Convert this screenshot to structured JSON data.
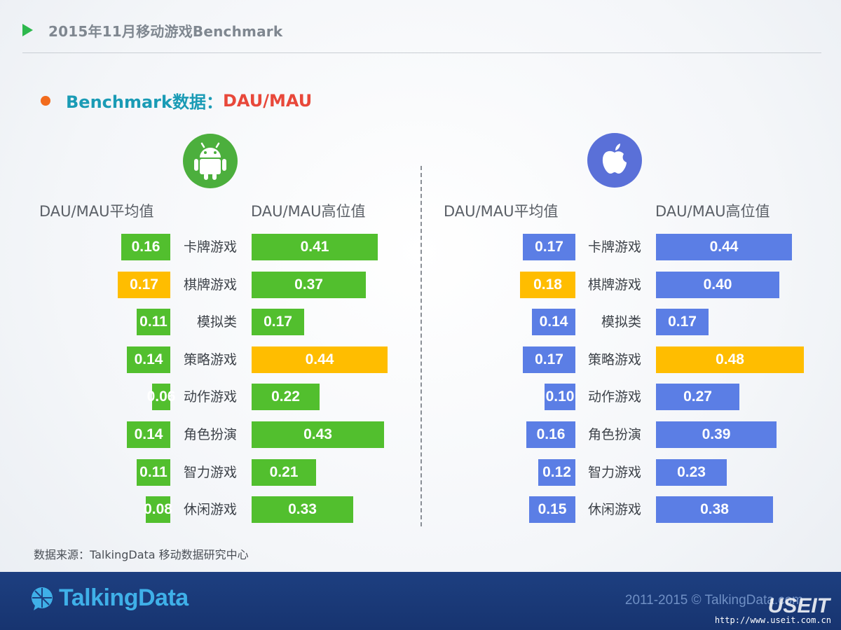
{
  "header": {
    "title": "2015年11月移动游戏Benchmark"
  },
  "section": {
    "label": "Benchmark数据：",
    "metric": "DAU/MAU"
  },
  "colors": {
    "android_bar": "#52bf2e",
    "ios_bar": "#5b7ee5",
    "highlight": "#ffbd00"
  },
  "icons": {
    "android": "android-icon",
    "ios": "apple-icon"
  },
  "columns": {
    "avg": "DAU/MAU平均值",
    "high": "DAU/MAU高位值"
  },
  "chart_data": [
    {
      "type": "bar",
      "platform_icon": "android-icon",
      "categories": [
        "卡牌游戏",
        "棋牌游戏",
        "模拟类",
        "策略游戏",
        "动作游戏",
        "角色扮演",
        "智力游戏",
        "休闲游戏"
      ],
      "series": [
        {
          "name": "DAU/MAU平均值",
          "values": [
            0.16,
            0.17,
            0.11,
            0.14,
            0.06,
            0.14,
            0.11,
            0.08
          ],
          "highlight_index": 1
        },
        {
          "name": "DAU/MAU高位值",
          "values": [
            0.41,
            0.37,
            0.17,
            0.44,
            0.22,
            0.43,
            0.21,
            0.33
          ],
          "highlight_index": 3
        }
      ]
    },
    {
      "type": "bar",
      "platform_icon": "apple-icon",
      "categories": [
        "卡牌游戏",
        "棋牌游戏",
        "模拟类",
        "策略游戏",
        "动作游戏",
        "角色扮演",
        "智力游戏",
        "休闲游戏"
      ],
      "series": [
        {
          "name": "DAU/MAU平均值",
          "values": [
            0.17,
            0.18,
            0.14,
            0.17,
            0.1,
            0.16,
            0.12,
            0.15
          ],
          "highlight_index": 1
        },
        {
          "name": "DAU/MAU高位值",
          "values": [
            0.44,
            0.4,
            0.17,
            0.48,
            0.27,
            0.39,
            0.23,
            0.38
          ],
          "highlight_index": 3
        }
      ]
    }
  ],
  "source": "数据来源：TalkingData 移动数据研究中心",
  "footer": {
    "logo_text": "TalkingData",
    "copyright": "2011-2015 © TalkingData.com",
    "watermark": "USEIT",
    "watermark_url": "http://www.useit.com.cn"
  }
}
